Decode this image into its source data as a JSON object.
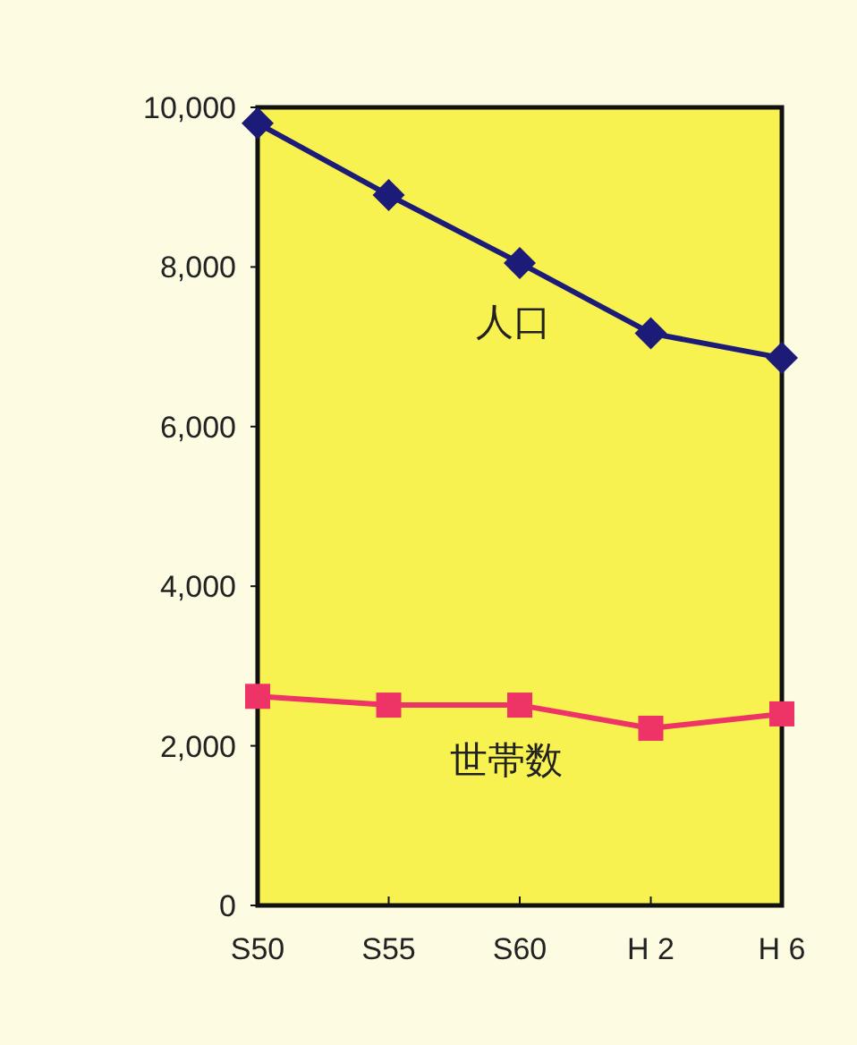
{
  "chart_data": {
    "type": "line",
    "categories": [
      "S50",
      "S55",
      "S60",
      "H 2",
      "H 6"
    ],
    "series": [
      {
        "name": "人口",
        "color": "#1c1c78",
        "marker": "diamond",
        "values": [
          9800,
          8900,
          8050,
          7170,
          6860
        ]
      },
      {
        "name": "世帯数",
        "color": "#ee3366",
        "marker": "square",
        "values": [
          2620,
          2510,
          2510,
          2220,
          2400
        ]
      }
    ],
    "ylim": [
      0,
      10000
    ],
    "yticks": [
      0,
      {
        "value": 2000,
        "label": "2,000"
      },
      {
        "value": 4000,
        "label": "4,000"
      },
      {
        "value": 6000,
        "label": "6,000"
      },
      {
        "value": 8000,
        "label": "8,000"
      },
      {
        "value": 10000,
        "label": "10,000"
      }
    ],
    "line_style": "solid"
  }
}
